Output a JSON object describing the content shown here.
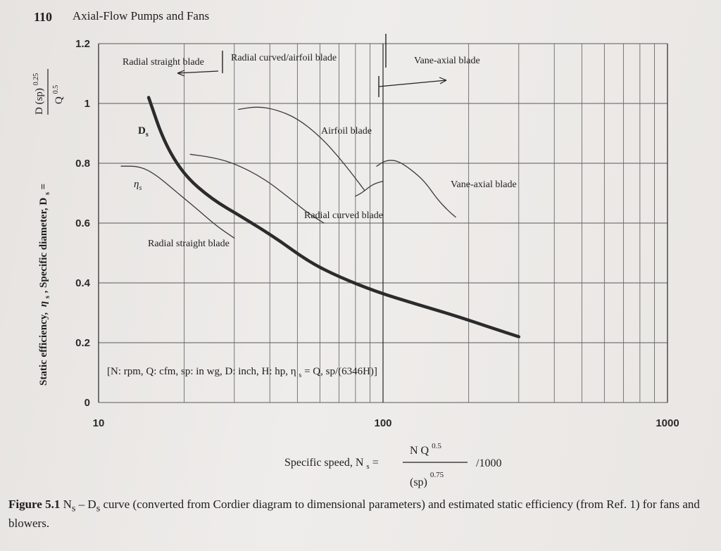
{
  "header": {
    "page_number": "110",
    "running_title": "Axial-Flow Pumps and Fans"
  },
  "chart_data": {
    "type": "line",
    "x_scale": "log",
    "xlim": [
      10,
      1000
    ],
    "ylim": [
      0,
      1.2
    ],
    "x_ticks": [
      "10",
      "100",
      "1000"
    ],
    "y_ticks": [
      "0",
      "0.2",
      "0.4",
      "0.6",
      "0.8",
      "1",
      "1.2"
    ],
    "grid": true,
    "ylabel_text": "Static efficiency,",
    "ylabel_eta": "η",
    "ylabel_eta_sub": "s",
    "ylabel_mid": " , Specific diameter, D",
    "ylabel_ds_sub": "s",
    "ylabel_eq": " =",
    "ylabel_frac_num": "D (sp)",
    "ylabel_frac_num_exp": "0.25",
    "ylabel_frac_den": "Q",
    "ylabel_frac_den_exp": "0.5",
    "xlabel_text": "Specific speed, N",
    "xlabel_sub": "s",
    "xlabel_eq": "=",
    "xlabel_num": "N Q",
    "xlabel_num_exp": "0.5",
    "xlabel_den": "(sp)",
    "xlabel_den_exp": "0.75",
    "xlabel_suffix": "/1000",
    "units_note": "[N: rpm, Q: cfm, sp: in wg, D: inch, H: hp, η",
    "units_note_sub": "s",
    "units_note_end": " = Q, sp/(6346H)]",
    "blade_regions": [
      "Radial straight blade",
      "Radial curved/airfoil blade",
      "Vane-axial blade"
    ],
    "annotations": {
      "ds_label": "D",
      "ds_label_sub": "s",
      "eta_label": "η",
      "eta_label_sub": "s",
      "airfoil": "Airfoil blade",
      "vane_axial": "Vane-axial blade",
      "radial_curved": "Radial curved blade",
      "radial_straight": "Radial straight blade"
    },
    "series": [
      {
        "name": "D",
        "style": "thick",
        "x": [
          15,
          17,
          20,
          25,
          32,
          42,
          55,
          70,
          95,
          130,
          180,
          240,
          300
        ],
        "y": [
          1.02,
          0.87,
          0.76,
          0.68,
          0.62,
          0.55,
          0.47,
          0.42,
          0.37,
          0.33,
          0.29,
          0.25,
          0.22
        ]
      },
      {
        "name": "η",
        "style": "thin",
        "x": [
          12,
          14,
          16,
          19,
          22,
          26,
          30
        ],
        "y": [
          0.79,
          0.79,
          0.76,
          0.7,
          0.65,
          0.59,
          0.55
        ]
      },
      {
        "name": "Radial curved blade",
        "style": "thin",
        "x": [
          21,
          25,
          30,
          38,
          46,
          55,
          62
        ],
        "y": [
          0.83,
          0.82,
          0.8,
          0.75,
          0.69,
          0.63,
          0.6
        ]
      },
      {
        "name": "Airfoil blade",
        "style": "thin",
        "x": [
          31,
          36,
          42,
          50,
          60,
          70,
          80,
          86
        ],
        "y": [
          0.98,
          0.99,
          0.98,
          0.95,
          0.89,
          0.82,
          0.75,
          0.71
        ]
      },
      {
        "name": "Vane-axial blade",
        "style": "thin",
        "x": [
          95,
          102,
          112,
          125,
          140,
          155,
          170,
          180
        ],
        "y": [
          0.79,
          0.81,
          0.81,
          0.78,
          0.74,
          0.68,
          0.64,
          0.62
        ]
      },
      {
        "name": "Vane-axial blade (2)",
        "style": "thin",
        "x": [
          80,
          84,
          92,
          100
        ],
        "y": [
          0.69,
          0.7,
          0.73,
          0.74
        ]
      }
    ]
  },
  "caption": {
    "label": "Figure 5.1",
    "text": "N",
    "text_sub": "s",
    "text_rest": " – D",
    "text_sub2": "s",
    "text_end": " curve (converted from Cordier diagram to dimensional parameters) and estimated static efficiency (from Ref. 1) for fans and blowers."
  }
}
